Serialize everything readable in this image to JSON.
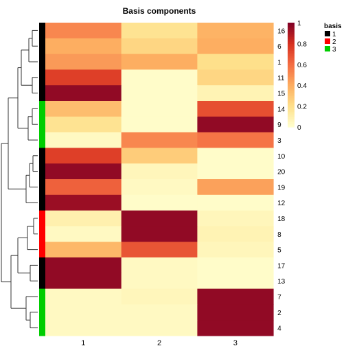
{
  "chart_data": {
    "type": "heatmap",
    "title": "Basis components",
    "xlabel": "",
    "ylabel": "",
    "columns": [
      "1",
      "2",
      "3"
    ],
    "rows": [
      {
        "label": "16",
        "basis": "1",
        "values": [
          0.52,
          0.18,
          0.38
        ]
      },
      {
        "label": "6",
        "basis": "1",
        "values": [
          0.4,
          0.24,
          0.4
        ]
      },
      {
        "label": "1",
        "basis": "1",
        "values": [
          0.46,
          0.4,
          0.2
        ]
      },
      {
        "label": "11",
        "basis": "1",
        "values": [
          0.75,
          0.02,
          0.24
        ]
      },
      {
        "label": "15",
        "basis": "1",
        "values": [
          0.96,
          0.02,
          0.08
        ]
      },
      {
        "label": "14",
        "basis": "3",
        "values": [
          0.34,
          0.02,
          0.7
        ]
      },
      {
        "label": "9",
        "basis": "3",
        "values": [
          0.18,
          0.02,
          0.96
        ]
      },
      {
        "label": "3",
        "basis": "3",
        "values": [
          0.04,
          0.52,
          0.58
        ]
      },
      {
        "label": "10",
        "basis": "1",
        "values": [
          0.75,
          0.28,
          0.02
        ]
      },
      {
        "label": "20",
        "basis": "1",
        "values": [
          0.96,
          0.06,
          0.02
        ]
      },
      {
        "label": "19",
        "basis": "1",
        "values": [
          0.64,
          0.04,
          0.44
        ]
      },
      {
        "label": "12",
        "basis": "1",
        "values": [
          0.94,
          0.02,
          0.02
        ]
      },
      {
        "label": "18",
        "basis": "2",
        "values": [
          0.1,
          0.96,
          0.06
        ]
      },
      {
        "label": "8",
        "basis": "2",
        "values": [
          0.04,
          0.96,
          0.08
        ]
      },
      {
        "label": "5",
        "basis": "2",
        "values": [
          0.36,
          0.68,
          0.06
        ]
      },
      {
        "label": "17",
        "basis": "1",
        "values": [
          0.96,
          0.04,
          0.02
        ]
      },
      {
        "label": "13",
        "basis": "1",
        "values": [
          0.96,
          0.04,
          0.02
        ]
      },
      {
        "label": "7",
        "basis": "3",
        "values": [
          0.04,
          0.06,
          0.96
        ]
      },
      {
        "label": "2",
        "basis": "3",
        "values": [
          0.04,
          0.04,
          0.96
        ]
      },
      {
        "label": "4",
        "basis": "3",
        "values": [
          0.04,
          0.04,
          0.96
        ]
      }
    ],
    "color_scale": {
      "range": [
        0,
        1
      ],
      "ticks": [
        "0",
        "0.2",
        "0.4",
        "0.6",
        "0.8",
        "1"
      ],
      "stops": [
        "#FFFFD0",
        "#FEE08B",
        "#FDAE61",
        "#F46D43",
        "#D7301F",
        "#800026"
      ]
    },
    "legend": {
      "title": "basis",
      "placement": "top-right",
      "items": [
        {
          "label": "1",
          "color": "#000000"
        },
        {
          "label": "2",
          "color": "#FF0000"
        },
        {
          "label": "3",
          "color": "#00CD00"
        }
      ]
    },
    "row_dendrogram": true
  }
}
